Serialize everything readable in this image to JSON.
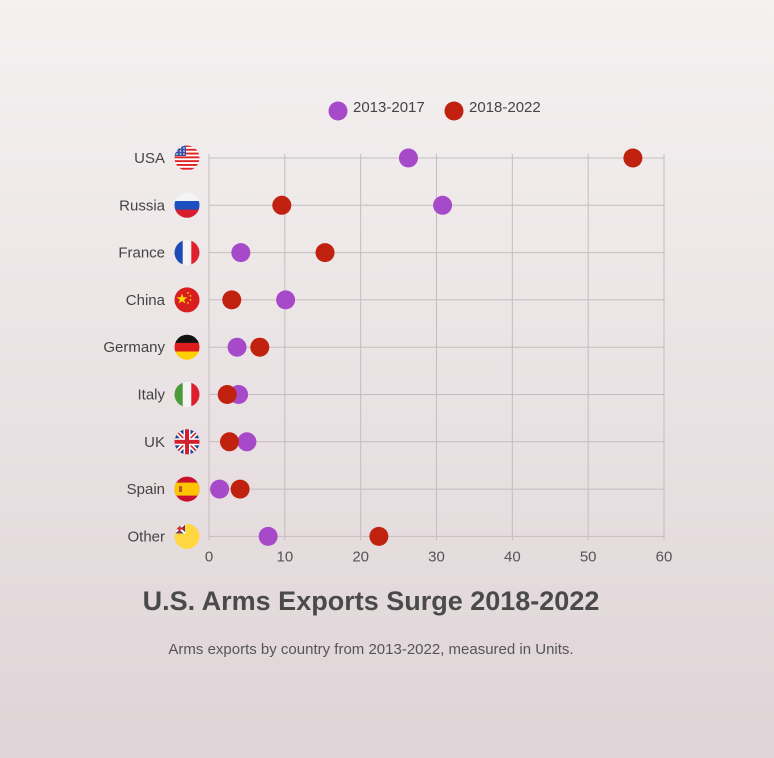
{
  "chart_data": {
    "type": "scatter",
    "title": "U.S. Arms Exports Surge 2018-2022",
    "subtitle": "Arms exports by country from 2013-2022, measured in Units.",
    "categories": [
      "USA",
      "Russia",
      "France",
      "China",
      "Germany",
      "Italy",
      "UK",
      "Spain",
      "Other"
    ],
    "series": [
      {
        "name": "2013-2017",
        "color": "#a64ac9",
        "values": [
          26.3,
          30.8,
          4.2,
          10.1,
          3.7,
          3.9,
          5.0,
          1.4,
          7.8
        ]
      },
      {
        "name": "2018-2022",
        "color": "#c0220f",
        "values": [
          55.9,
          9.6,
          15.3,
          3.0,
          6.7,
          2.4,
          2.7,
          4.1,
          22.4
        ]
      }
    ],
    "xlim": [
      0,
      60
    ],
    "x_ticks": [
      "0",
      "10",
      "20",
      "30",
      "40",
      "50",
      "60"
    ],
    "grid": true,
    "legend_position": "top",
    "flag_icons": [
      "us-flag-icon",
      "russia-flag-icon",
      "france-flag-icon",
      "china-flag-icon",
      "germany-flag-icon",
      "italy-flag-icon",
      "uk-flag-icon",
      "spain-flag-icon",
      "other-flag-icon"
    ]
  }
}
